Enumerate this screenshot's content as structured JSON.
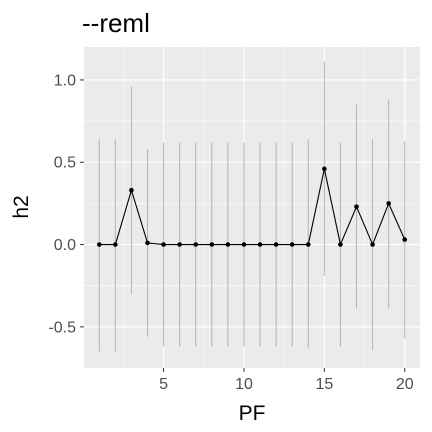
{
  "chart_data": {
    "type": "line",
    "title": "--reml",
    "xlabel": "PF",
    "ylabel": "h2",
    "xlim": [
      0.05,
      20.95
    ],
    "ylim": [
      -0.75,
      1.2
    ],
    "x_ticks": [
      5,
      10,
      15,
      20
    ],
    "y_ticks": [
      -0.5,
      0.0,
      0.5,
      1.0
    ],
    "x_tick_labels": [
      "5",
      "10",
      "15",
      "20"
    ],
    "y_tick_labels": [
      "-0.5",
      "0.0",
      "0.5",
      "1.0"
    ],
    "grid": true,
    "series": [
      {
        "x": [
          1,
          2,
          3,
          4,
          5,
          6,
          7,
          8,
          9,
          10,
          11,
          12,
          13,
          14,
          15,
          16,
          17,
          18,
          19,
          20
        ],
        "y": [
          0.0,
          0.0,
          0.33,
          0.01,
          0.0,
          0.0,
          0.0,
          0.0,
          0.0,
          0.0,
          0.0,
          0.0,
          0.0,
          0.0,
          0.46,
          0.0,
          0.23,
          0.0,
          0.25,
          0.03
        ],
        "lower": [
          -0.65,
          -0.65,
          -0.3,
          -0.56,
          -0.62,
          -0.62,
          -0.62,
          -0.62,
          -0.62,
          -0.62,
          -0.62,
          -0.62,
          -0.62,
          -0.63,
          -0.19,
          -0.62,
          -0.39,
          -0.64,
          -0.39,
          -0.57
        ],
        "upper": [
          0.64,
          0.64,
          0.96,
          0.58,
          0.62,
          0.62,
          0.62,
          0.62,
          0.62,
          0.62,
          0.62,
          0.62,
          0.62,
          0.64,
          1.11,
          0.62,
          0.85,
          0.64,
          0.88,
          0.63
        ]
      }
    ],
    "colors": {
      "panel": "#ebebeb",
      "grid_major": "#ffffff",
      "errorbar": "#b3b3b3",
      "line": "#000000",
      "points": "#000000",
      "tick_text": "#4d4d4d"
    }
  }
}
